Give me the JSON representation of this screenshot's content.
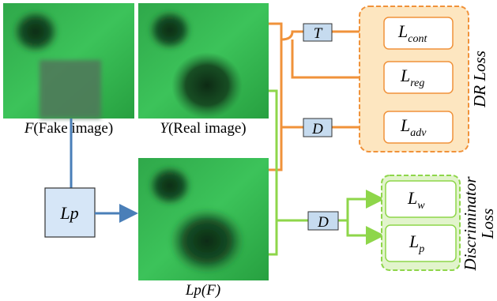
{
  "images": [
    {
      "symbol": "F",
      "caption": "(Fake image)"
    },
    {
      "symbol": "Y",
      "caption": "(Real image)"
    },
    {
      "caption": "Lp(F)"
    }
  ],
  "operator": "Lp",
  "nodes": {
    "t": "T",
    "d_dr": "D",
    "d_disc": "D"
  },
  "dr_loss": {
    "title": "DR Loss",
    "terms": [
      {
        "symbol": "L",
        "sub": "cont"
      },
      {
        "symbol": "L",
        "sub": "reg"
      },
      {
        "symbol": "L",
        "sub": "adv"
      }
    ]
  },
  "discriminator_loss": {
    "title_lines": [
      "Discriminator",
      "Loss"
    ],
    "terms": [
      {
        "symbol": "L",
        "sub": "w"
      },
      {
        "symbol": "L",
        "sub": "p"
      }
    ]
  }
}
